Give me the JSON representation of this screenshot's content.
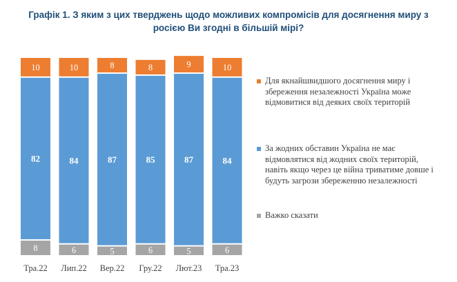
{
  "chart_data": {
    "type": "bar",
    "stacked": true,
    "title": "Графік 1. З яким з цих тверджень щодо можливих компромісів для досягнення миру з росією Ви згодні в більшій мірі?",
    "categories": [
      "Тра.22",
      "Лип.22",
      "Вер.22",
      "Гру.22",
      "Лют.23",
      "Тра.23"
    ],
    "series": [
      {
        "name": "Важко сказати",
        "color": "#a5a5a5",
        "values": [
          8,
          6,
          5,
          6,
          5,
          6
        ]
      },
      {
        "name": "За жодних обставин Україна не має відмовлятися від жодних своїх територій, навіть якщо через це війна триватиме довше і будуть загрози збереженню незалежності",
        "color": "#5b9bd5",
        "values": [
          82,
          84,
          87,
          85,
          87,
          84
        ]
      },
      {
        "name": "Для якнайшвидшого досягнення миру і збереження незалежності Україна може відмовитися від деяких своїх територій",
        "color": "#ed7d31",
        "values": [
          10,
          10,
          8,
          8,
          9,
          10
        ]
      }
    ],
    "ylim": [
      0,
      100
    ],
    "grid": false,
    "legend_position": "right"
  }
}
